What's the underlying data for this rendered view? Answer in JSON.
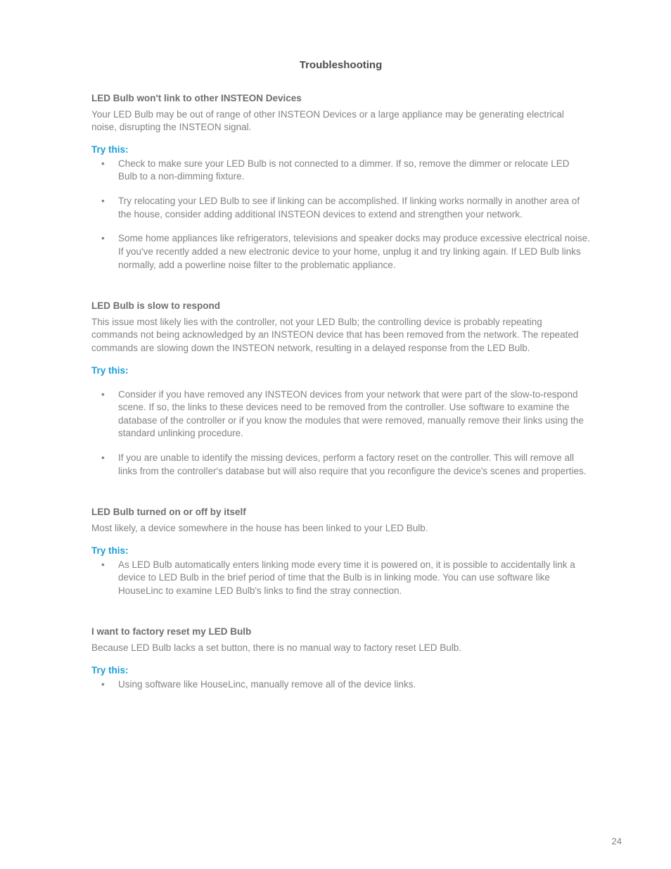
{
  "title": "Troubleshooting",
  "page_number": "24",
  "try_label": "Try this:",
  "colors": {
    "accent": "#1a9dd9",
    "heading": "#6d6e71",
    "body": "#808285",
    "title": "#4d4d4f",
    "background": "#ffffff"
  },
  "sections": [
    {
      "heading": "LED Bulb won't link to other INSTEON Devices",
      "intro": "Your LED Bulb may be out of range of other INSTEON Devices or a large appliance may be generating electrical noise, disrupting the INSTEON signal.",
      "spaced": true,
      "items": [
        "Check to make sure your LED Bulb is not connected to a dimmer. If so, remove the dimmer or relocate LED Bulb to a non-dimming fixture.",
        "Try relocating your LED Bulb to see if linking can be accomplished. If linking works normally in another area of the house, consider adding additional INSTEON devices to extend and strengthen your network.",
        "Some home appliances like refrigerators, televisions and speaker docks may produce excessive electrical noise. If you've recently added a new electronic device to your home, unplug it and try linking again. If LED Bulb links normally, add a powerline noise filter to the problematic appliance."
      ]
    },
    {
      "heading": "LED Bulb is slow to respond",
      "intro": "This issue most likely lies with the controller, not your LED Bulb; the controlling device is probably repeating commands not being acknowledged by an INSTEON device that has been removed from the network. The repeated commands are slowing down the INSTEON network, resulting in a delayed response from the LED Bulb.",
      "spaced": true,
      "extra_gap": true,
      "items": [
        "Consider if you have removed any INSTEON devices from your network that were part of the slow-to-respond scene. If so, the links to these devices need to be removed from the controller. Use software to examine the database of the controller or if you know the modules that were removed, manually remove their links using the standard unlinking procedure.",
        "If you are unable to identify the missing devices, perform a factory reset on the controller. This will remove all links from the controller's database but will also require that you reconfigure the device's scenes and properties."
      ]
    },
    {
      "heading": "LED Bulb turned on or off by itself",
      "intro": "Most likely, a device somewhere in the house has been linked to your LED Bulb.",
      "spaced": false,
      "items": [
        "As LED Bulb automatically enters linking mode every time it is powered on, it is possible to accidentally link a device to LED Bulb in the brief period of time that the Bulb is in linking mode. You can use software like HouseLinc to examine LED Bulb's links to find the stray connection."
      ]
    },
    {
      "heading": "I want to factory reset my LED Bulb",
      "intro": "Because LED Bulb lacks a set button, there is no manual way to factory reset LED Bulb.",
      "spaced": false,
      "items": [
        "Using software like HouseLinc, manually remove all of the device links."
      ]
    }
  ]
}
